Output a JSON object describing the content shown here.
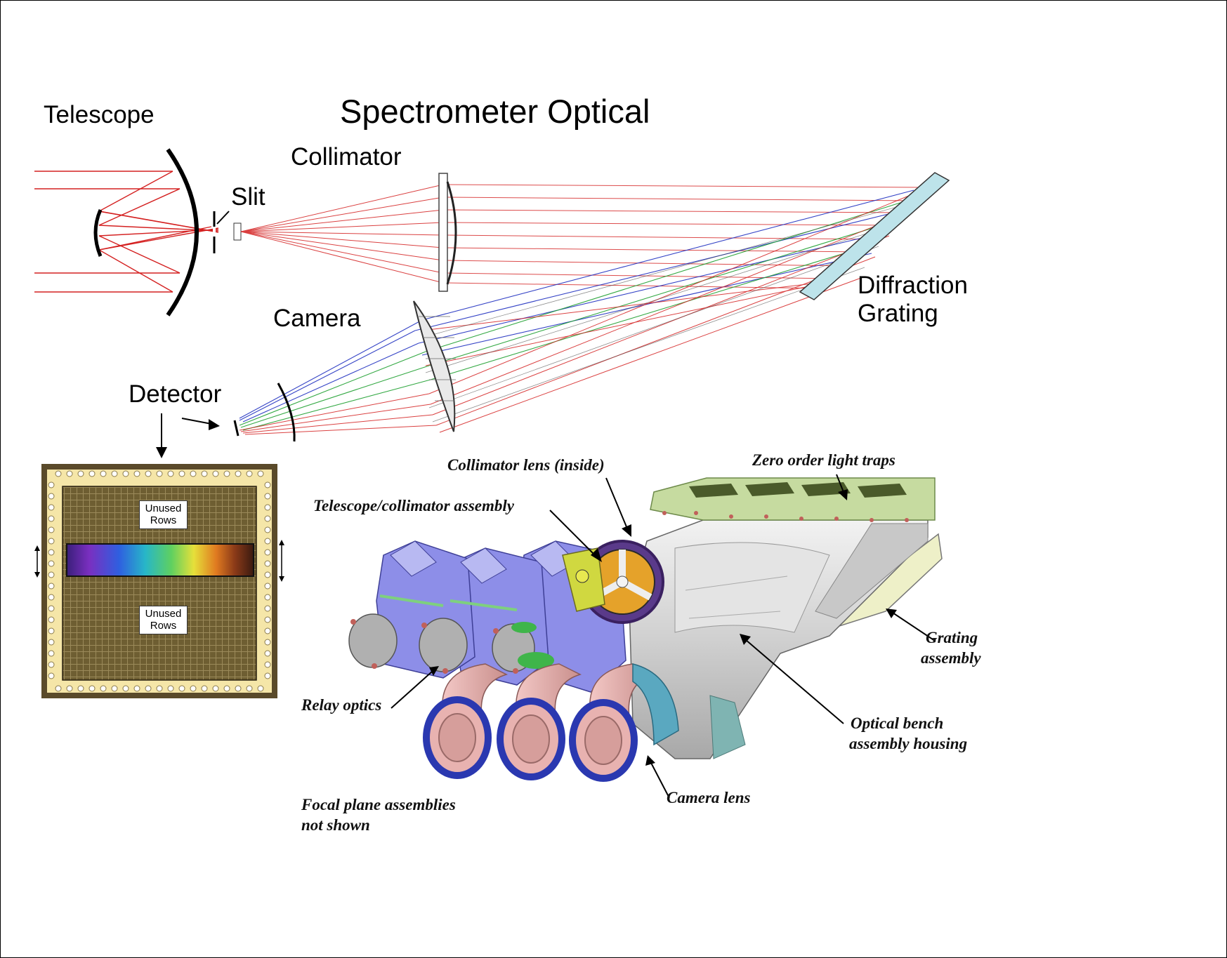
{
  "title": "Spectrometer Optical",
  "optical_labels": {
    "telescope": "Telescope",
    "slit": "Slit",
    "collimator": "Collimator",
    "camera": "Camera",
    "diffraction_grating": [
      "Diffraction",
      "Grating"
    ],
    "detector": "Detector"
  },
  "detector_labels": {
    "unused_rows_top": [
      "Unused",
      "Rows"
    ],
    "unused_rows_bottom": [
      "Unused",
      "Rows"
    ]
  },
  "assembly_labels": {
    "collimator_lens": "Collimator lens (inside)",
    "zero_order_light_traps": "Zero order light traps",
    "telescope_collimator_assembly": "Telescope/collimator assembly",
    "grating_assembly": [
      "Grating",
      "assembly"
    ],
    "relay_optics": "Relay optics",
    "optical_bench_housing": [
      "Optical bench",
      "assembly housing"
    ],
    "camera_lens": "Camera lens",
    "focal_plane_note": [
      "Focal plane assemblies",
      "not shown"
    ]
  },
  "colors": {
    "ray_red": "#d42020",
    "ray_green": "#1fa030",
    "ray_blue": "#2030c0",
    "grating_fill": "#bde3ea",
    "housing_gray": "#d8d8d8",
    "relay_purple": "#8d8ee8",
    "lens_pink": "#e8b2b0",
    "ring_blue": "#2a38b0",
    "trap_green": "#c6dba0"
  }
}
